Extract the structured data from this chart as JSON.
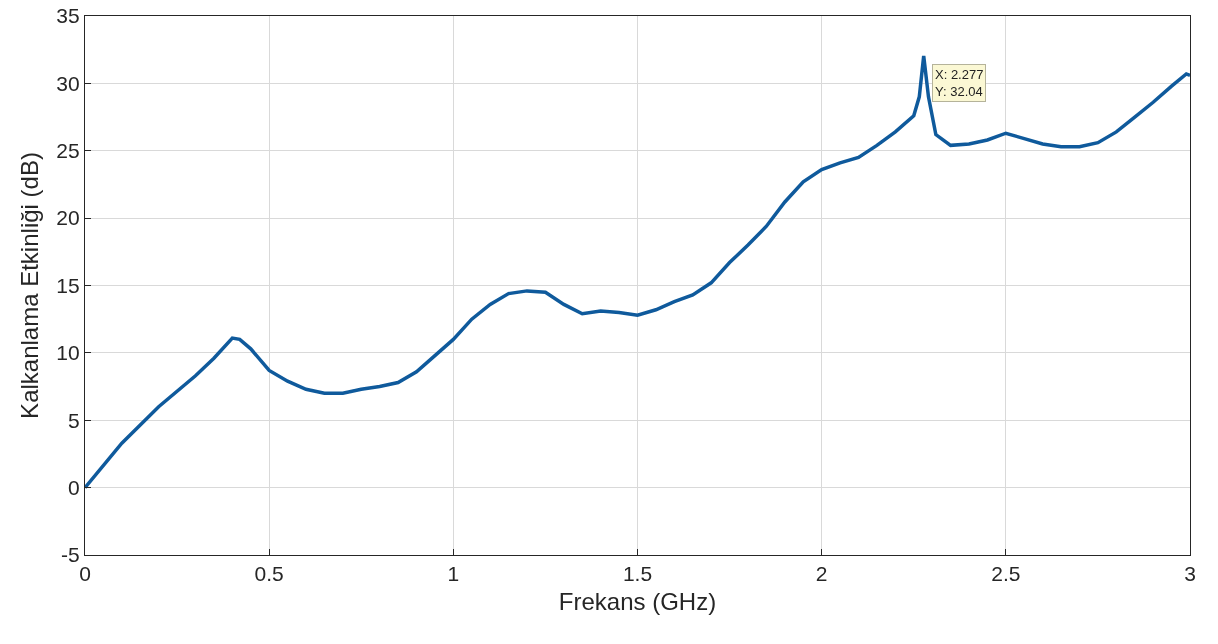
{
  "chart_data": {
    "type": "line",
    "xlabel": "Frekans (GHz)",
    "ylabel": "Kalkanlama Etkinliği (dB)",
    "x": [
      0,
      0.1,
      0.2,
      0.3,
      0.35,
      0.4,
      0.42,
      0.45,
      0.5,
      0.55,
      0.6,
      0.65,
      0.7,
      0.75,
      0.8,
      0.85,
      0.9,
      0.95,
      1.0,
      1.05,
      1.1,
      1.15,
      1.2,
      1.25,
      1.3,
      1.35,
      1.4,
      1.45,
      1.5,
      1.55,
      1.6,
      1.65,
      1.7,
      1.75,
      1.8,
      1.85,
      1.9,
      1.95,
      2.0,
      2.05,
      2.1,
      2.15,
      2.2,
      2.25,
      2.265,
      2.277,
      2.29,
      2.31,
      2.35,
      2.4,
      2.45,
      2.5,
      2.55,
      2.6,
      2.65,
      2.7,
      2.75,
      2.8,
      2.85,
      2.9,
      2.95,
      2.99,
      3.0
    ],
    "series": [
      {
        "color": "#0f5a9c",
        "values": [
          0,
          3.3,
          6,
          8.3,
          9.6,
          11.1,
          11.0,
          10.3,
          8.7,
          7.9,
          7.3,
          7.0,
          7.0,
          7.3,
          7.5,
          7.8,
          8.6,
          9.8,
          11.0,
          12.5,
          13.6,
          14.4,
          14.6,
          14.5,
          13.6,
          12.9,
          13.1,
          13.0,
          12.8,
          13.2,
          13.8,
          14.3,
          15.2,
          16.7,
          18.0,
          19.4,
          21.2,
          22.7,
          23.6,
          24.1,
          24.5,
          25.4,
          26.4,
          27.6,
          29,
          32.04,
          29,
          26.2,
          25.4,
          25.5,
          25.8,
          26.3,
          25.9,
          25.5,
          25.3,
          25.3,
          25.6,
          26.4,
          27.5,
          28.6,
          29.8,
          30.7,
          30.6
        ]
      }
    ],
    "xlim": [
      0,
      3
    ],
    "xticks": [
      0,
      0.5,
      1,
      1.5,
      2,
      2.5,
      3
    ],
    "ylim": [
      -5,
      35
    ],
    "yticks": [
      -5,
      0,
      5,
      10,
      15,
      20,
      25,
      30,
      35
    ],
    "grid": true,
    "marker": "none",
    "line_style": "solid",
    "annotations": [
      {
        "text": "X: 2.277\nY: 32.04",
        "x": 2.277,
        "y": 32.04
      }
    ]
  }
}
